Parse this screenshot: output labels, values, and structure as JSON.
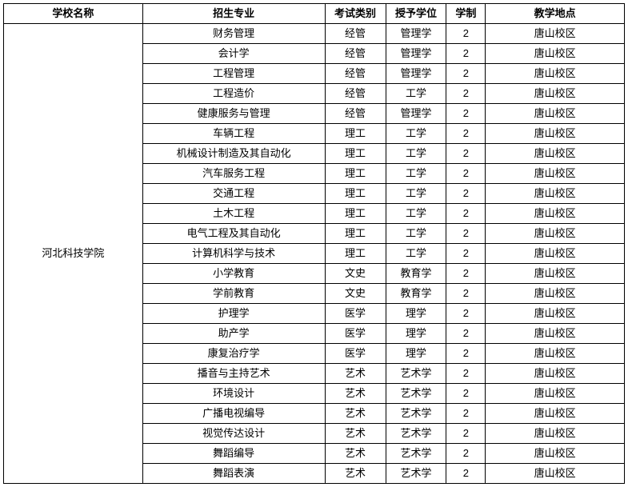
{
  "table": {
    "headers": {
      "school": "学校名称",
      "major": "招生专业",
      "exam": "考试类别",
      "degree": "授予学位",
      "years": "学制",
      "location": "教学地点"
    },
    "school_name": "河北科技学院",
    "rows": [
      {
        "major": "财务管理",
        "exam": "经管",
        "degree": "管理学",
        "years": "2",
        "location": "唐山校区"
      },
      {
        "major": "会计学",
        "exam": "经管",
        "degree": "管理学",
        "years": "2",
        "location": "唐山校区"
      },
      {
        "major": "工程管理",
        "exam": "经管",
        "degree": "管理学",
        "years": "2",
        "location": "唐山校区"
      },
      {
        "major": "工程造价",
        "exam": "经管",
        "degree": "工学",
        "years": "2",
        "location": "唐山校区"
      },
      {
        "major": "健康服务与管理",
        "exam": "经管",
        "degree": "管理学",
        "years": "2",
        "location": "唐山校区"
      },
      {
        "major": "车辆工程",
        "exam": "理工",
        "degree": "工学",
        "years": "2",
        "location": "唐山校区"
      },
      {
        "major": "机械设计制造及其自动化",
        "exam": "理工",
        "degree": "工学",
        "years": "2",
        "location": "唐山校区"
      },
      {
        "major": "汽车服务工程",
        "exam": "理工",
        "degree": "工学",
        "years": "2",
        "location": "唐山校区"
      },
      {
        "major": "交通工程",
        "exam": "理工",
        "degree": "工学",
        "years": "2",
        "location": "唐山校区"
      },
      {
        "major": "土木工程",
        "exam": "理工",
        "degree": "工学",
        "years": "2",
        "location": "唐山校区"
      },
      {
        "major": "电气工程及其自动化",
        "exam": "理工",
        "degree": "工学",
        "years": "2",
        "location": "唐山校区"
      },
      {
        "major": "计算机科学与技术",
        "exam": "理工",
        "degree": "工学",
        "years": "2",
        "location": "唐山校区"
      },
      {
        "major": "小学教育",
        "exam": "文史",
        "degree": "教育学",
        "years": "2",
        "location": "唐山校区"
      },
      {
        "major": "学前教育",
        "exam": "文史",
        "degree": "教育学",
        "years": "2",
        "location": "唐山校区"
      },
      {
        "major": "护理学",
        "exam": "医学",
        "degree": "理学",
        "years": "2",
        "location": "唐山校区"
      },
      {
        "major": "助产学",
        "exam": "医学",
        "degree": "理学",
        "years": "2",
        "location": "唐山校区"
      },
      {
        "major": "康复治疗学",
        "exam": "医学",
        "degree": "理学",
        "years": "2",
        "location": "唐山校区"
      },
      {
        "major": "播音与主持艺术",
        "exam": "艺术",
        "degree": "艺术学",
        "years": "2",
        "location": "唐山校区"
      },
      {
        "major": "环境设计",
        "exam": "艺术",
        "degree": "艺术学",
        "years": "2",
        "location": "唐山校区"
      },
      {
        "major": "广播电视编导",
        "exam": "艺术",
        "degree": "艺术学",
        "years": "2",
        "location": "唐山校区"
      },
      {
        "major": "视觉传达设计",
        "exam": "艺术",
        "degree": "艺术学",
        "years": "2",
        "location": "唐山校区"
      },
      {
        "major": "舞蹈编导",
        "exam": "艺术",
        "degree": "艺术学",
        "years": "2",
        "location": "唐山校区"
      },
      {
        "major": "舞蹈表演",
        "exam": "艺术",
        "degree": "艺术学",
        "years": "2",
        "location": "唐山校区"
      }
    ]
  }
}
